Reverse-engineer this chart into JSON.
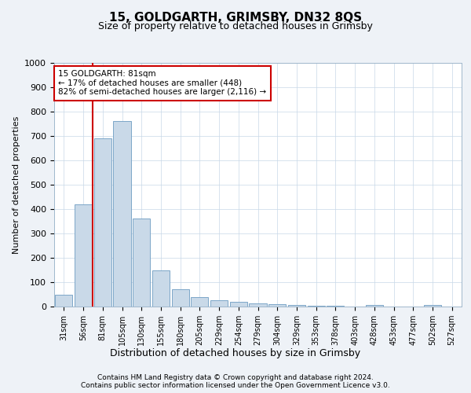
{
  "title": "15, GOLDGARTH, GRIMSBY, DN32 8QS",
  "subtitle": "Size of property relative to detached houses in Grimsby",
  "xlabel": "Distribution of detached houses by size in Grimsby",
  "ylabel": "Number of detached properties",
  "bar_labels": [
    "31sqm",
    "56sqm",
    "81sqm",
    "105sqm",
    "130sqm",
    "155sqm",
    "180sqm",
    "205sqm",
    "229sqm",
    "254sqm",
    "279sqm",
    "304sqm",
    "329sqm",
    "353sqm",
    "378sqm",
    "403sqm",
    "428sqm",
    "453sqm",
    "477sqm",
    "502sqm",
    "527sqm"
  ],
  "bar_values": [
    50,
    420,
    690,
    760,
    360,
    150,
    70,
    38,
    27,
    18,
    13,
    9,
    5,
    3,
    2,
    0,
    8,
    0,
    0,
    8,
    0
  ],
  "bar_color": "#c9d9e8",
  "bar_edge_color": "#7ca6c8",
  "vline_index": 2,
  "vline_color": "#cc0000",
  "annotation_text": "15 GOLDGARTH: 81sqm\n← 17% of detached houses are smaller (448)\n82% of semi-detached houses are larger (2,116) →",
  "annotation_box_color": "#ffffff",
  "annotation_box_edge_color": "#cc0000",
  "ylim": [
    0,
    1000
  ],
  "yticks": [
    0,
    100,
    200,
    300,
    400,
    500,
    600,
    700,
    800,
    900,
    1000
  ],
  "footer_line1": "Contains HM Land Registry data © Crown copyright and database right 2024.",
  "footer_line2": "Contains public sector information licensed under the Open Government Licence v3.0.",
  "bg_color": "#eef2f7",
  "plot_bg_color": "#ffffff",
  "grid_color": "#c8d8e8"
}
